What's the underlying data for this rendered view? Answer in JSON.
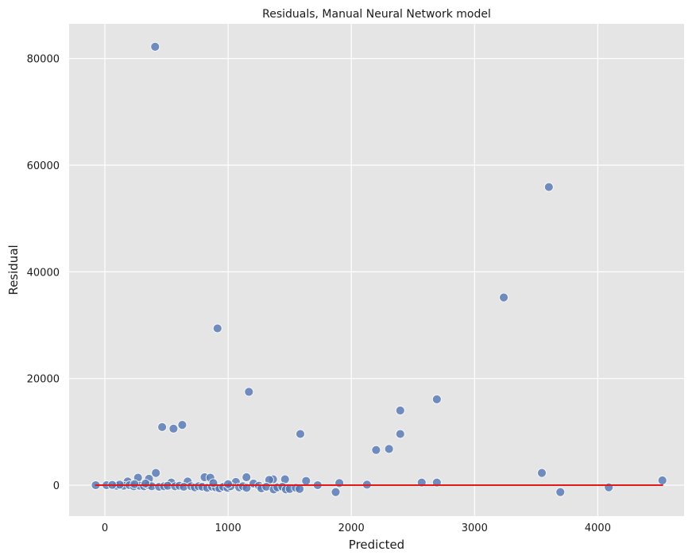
{
  "chart_data": {
    "type": "scatter",
    "title": "Residuals, Manual Neural Network model",
    "xlabel": "Predicted",
    "ylabel": "Residual",
    "xlim": [
      -290,
      4700
    ],
    "ylim": [
      -5800,
      86500
    ],
    "xticks": [
      0,
      1000,
      2000,
      3000,
      4000
    ],
    "yticks": [
      0,
      20000,
      40000,
      60000,
      80000
    ],
    "grid": true,
    "colors": {
      "background": "#e5e5e5",
      "grid": "#ffffff",
      "points": "#5577b4",
      "zero_line": "#e0191b"
    },
    "zero_line": {
      "x": [
        -80,
        4530
      ],
      "y": 0
    },
    "points": [
      {
        "x": 408,
        "y": 82200
      },
      {
        "x": 3603,
        "y": 55900
      },
      {
        "x": 3237,
        "y": 35200
      },
      {
        "x": 914,
        "y": 29400
      },
      {
        "x": 1169,
        "y": 17500
      },
      {
        "x": 2694,
        "y": 16100
      },
      {
        "x": 2397,
        "y": 14000
      },
      {
        "x": 628,
        "y": 11300
      },
      {
        "x": 465,
        "y": 10900
      },
      {
        "x": 557,
        "y": 10600
      },
      {
        "x": 1586,
        "y": 9600
      },
      {
        "x": 2397,
        "y": 9600
      },
      {
        "x": 2306,
        "y": 6800
      },
      {
        "x": 2201,
        "y": 6600
      },
      {
        "x": 3546,
        "y": 2300
      },
      {
        "x": 414,
        "y": 2300
      },
      {
        "x": 1149,
        "y": 1500
      },
      {
        "x": 269,
        "y": 1400
      },
      {
        "x": 358,
        "y": 1200
      },
      {
        "x": 809,
        "y": 1500
      },
      {
        "x": 856,
        "y": 1400
      },
      {
        "x": 1365,
        "y": 1100
      },
      {
        "x": 1462,
        "y": 1100
      },
      {
        "x": 1334,
        "y": 1000
      },
      {
        "x": 4524,
        "y": 900
      },
      {
        "x": 1633,
        "y": 800
      },
      {
        "x": 185,
        "y": 700
      },
      {
        "x": 672,
        "y": 700
      },
      {
        "x": 1063,
        "y": 600
      },
      {
        "x": 2571,
        "y": 500
      },
      {
        "x": 2694,
        "y": 500
      },
      {
        "x": 539,
        "y": 500
      },
      {
        "x": 1903,
        "y": 400
      },
      {
        "x": 1206,
        "y": 300
      },
      {
        "x": 2127,
        "y": 100
      },
      {
        "x": 1727,
        "y": 0
      },
      {
        "x": -74,
        "y": 0
      },
      {
        "x": 14,
        "y": 0
      },
      {
        "x": 95,
        "y": -100
      },
      {
        "x": 152,
        "y": -100
      },
      {
        "x": 200,
        "y": 0
      },
      {
        "x": 235,
        "y": -200
      },
      {
        "x": 283,
        "y": -100
      },
      {
        "x": 318,
        "y": -200
      },
      {
        "x": 352,
        "y": 0
      },
      {
        "x": 380,
        "y": -200
      },
      {
        "x": 440,
        "y": -300
      },
      {
        "x": 480,
        "y": -200
      },
      {
        "x": 510,
        "y": -100
      },
      {
        "x": 570,
        "y": -200
      },
      {
        "x": 605,
        "y": -100
      },
      {
        "x": 640,
        "y": -300
      },
      {
        "x": 700,
        "y": -200
      },
      {
        "x": 730,
        "y": -400
      },
      {
        "x": 760,
        "y": -200
      },
      {
        "x": 790,
        "y": -300
      },
      {
        "x": 830,
        "y": -500
      },
      {
        "x": 870,
        "y": -300
      },
      {
        "x": 900,
        "y": -400
      },
      {
        "x": 930,
        "y": -600
      },
      {
        "x": 960,
        "y": -300
      },
      {
        "x": 995,
        "y": -500
      },
      {
        "x": 1020,
        "y": -200
      },
      {
        "x": 1090,
        "y": -400
      },
      {
        "x": 1120,
        "y": -200
      },
      {
        "x": 1150,
        "y": -500
      },
      {
        "x": 1250,
        "y": -100
      },
      {
        "x": 1270,
        "y": -600
      },
      {
        "x": 1310,
        "y": -300
      },
      {
        "x": 1370,
        "y": -800
      },
      {
        "x": 1400,
        "y": -400
      },
      {
        "x": 1440,
        "y": -300
      },
      {
        "x": 1470,
        "y": -800
      },
      {
        "x": 1500,
        "y": -700
      },
      {
        "x": 1550,
        "y": -500
      },
      {
        "x": 1580,
        "y": -700
      },
      {
        "x": 1873,
        "y": -1300
      },
      {
        "x": 3696,
        "y": -1300
      },
      {
        "x": 4089,
        "y": -400
      },
      {
        "x": 1000,
        "y": 200
      },
      {
        "x": 880,
        "y": 400
      },
      {
        "x": 240,
        "y": 200
      },
      {
        "x": 120,
        "y": 100
      },
      {
        "x": 60,
        "y": 50
      },
      {
        "x": 330,
        "y": 300
      }
    ]
  }
}
